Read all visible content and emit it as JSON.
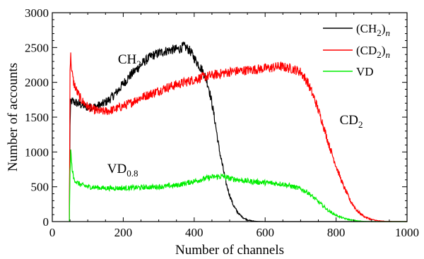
{
  "chart_data": {
    "type": "line",
    "xlabel": "Number of channels",
    "ylabel": "Number of accounts",
    "xlim": [
      0,
      1000
    ],
    "ylim": [
      0,
      3000
    ],
    "xticks": [
      "0",
      "200",
      "400",
      "600",
      "800",
      "1000"
    ],
    "yticks": [
      "0",
      "500",
      "1000",
      "1500",
      "2000",
      "2500",
      "3000"
    ],
    "grid": false,
    "legend_position": "top-right",
    "series": [
      {
        "key": "ch2",
        "legend": {
          "main": "(CH",
          "sub": "2",
          "tail": ")",
          "ital": "n"
        },
        "color": "#000000",
        "x": [
          48,
          50,
          52,
          55,
          60,
          70,
          80,
          90,
          100,
          120,
          140,
          160,
          180,
          200,
          220,
          240,
          260,
          280,
          300,
          320,
          340,
          360,
          370,
          380,
          390,
          400,
          410,
          420,
          430,
          440,
          450,
          460,
          470,
          480,
          490,
          500,
          510,
          520,
          530,
          540,
          550,
          560,
          570,
          580,
          600,
          650,
          700,
          800,
          900,
          1000
        ],
        "y": [
          0,
          1400,
          1700,
          1730,
          1720,
          1700,
          1680,
          1660,
          1640,
          1650,
          1680,
          1750,
          1850,
          1980,
          2100,
          2200,
          2300,
          2380,
          2420,
          2450,
          2470,
          2480,
          2520,
          2490,
          2440,
          2350,
          2270,
          2200,
          2100,
          1950,
          1700,
          1400,
          1050,
          800,
          550,
          380,
          240,
          150,
          90,
          50,
          25,
          12,
          6,
          3,
          0,
          0,
          0,
          0,
          0,
          0
        ]
      },
      {
        "key": "cd2",
        "legend": {
          "main": "(CD",
          "sub": "2",
          "tail": ")",
          "ital": "n"
        },
        "color": "#ff0000",
        "x": [
          48,
          50,
          52,
          55,
          60,
          70,
          80,
          90,
          100,
          120,
          140,
          160,
          180,
          200,
          220,
          240,
          260,
          280,
          300,
          320,
          340,
          360,
          380,
          400,
          420,
          440,
          460,
          480,
          500,
          520,
          540,
          560,
          580,
          600,
          620,
          640,
          660,
          680,
          700,
          720,
          740,
          760,
          780,
          800,
          820,
          840,
          860,
          880,
          900,
          920,
          940,
          1000
        ],
        "y": [
          0,
          2200,
          2380,
          2150,
          2000,
          1860,
          1760,
          1700,
          1650,
          1600,
          1580,
          1590,
          1620,
          1660,
          1700,
          1760,
          1800,
          1840,
          1880,
          1920,
          1950,
          1980,
          2010,
          2040,
          2070,
          2090,
          2110,
          2130,
          2150,
          2160,
          2170,
          2180,
          2190,
          2200,
          2210,
          2230,
          2210,
          2190,
          2150,
          2000,
          1750,
          1450,
          1100,
          800,
          520,
          300,
          150,
          70,
          30,
          10,
          3,
          0
        ]
      },
      {
        "key": "vd",
        "legend": {
          "main": "VD",
          "sub": "",
          "tail": "",
          "ital": ""
        },
        "color": "#00ee00",
        "x": [
          48,
          50,
          52,
          55,
          60,
          70,
          80,
          100,
          150,
          200,
          250,
          300,
          350,
          400,
          450,
          480,
          500,
          550,
          600,
          650,
          680,
          700,
          720,
          740,
          760,
          780,
          800,
          820,
          840,
          860,
          880,
          900,
          1000
        ],
        "y": [
          0,
          700,
          1020,
          800,
          620,
          560,
          530,
          500,
          480,
          480,
          490,
          500,
          520,
          580,
          640,
          650,
          620,
          580,
          560,
          540,
          500,
          470,
          420,
          330,
          240,
          150,
          90,
          50,
          25,
          10,
          3,
          0,
          0
        ]
      }
    ],
    "annotations": [
      {
        "main": "CH",
        "sub": "2",
        "x": 185,
        "y": 2270
      },
      {
        "main": "CD",
        "sub": "2",
        "x": 810,
        "y": 1400
      },
      {
        "main": "VD",
        "sub": "0.8",
        "x": 155,
        "y": 700
      }
    ]
  }
}
